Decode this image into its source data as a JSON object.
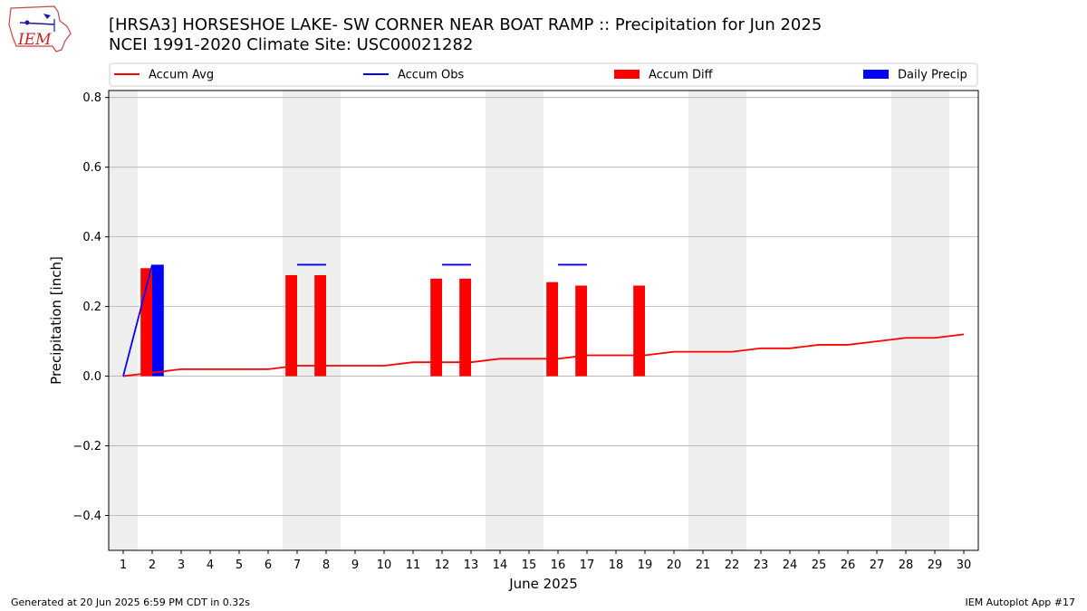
{
  "page": {
    "title_line1": "[HRSA3] HORSESHOE LAKE- SW CORNER NEAR BOAT RAMP :: Precipitation for Jun 2025",
    "title_line2": "NCEI 1991-2020 Climate Site: USC00021282",
    "footer_left": "Generated at 20 Jun 2025 6:59 PM CDT in 0.32s",
    "footer_right": "IEM Autoplot App #17",
    "logo_text": "IEM"
  },
  "colors": {
    "avg": "#ff0000",
    "obs": "#0000ff",
    "diff": "#ff0000",
    "daily": "#0000ff",
    "weekend": "#eeeeee",
    "grid": "#b0b0b0"
  },
  "chart_data": {
    "type": "bar",
    "xlabel": "June 2025",
    "ylabel": "Precipitation [inch]",
    "xlim": [
      0.5,
      30.5
    ],
    "ylim": [
      -0.5,
      0.82
    ],
    "yticks": [
      -0.4,
      -0.2,
      0.0,
      0.2,
      0.4,
      0.6,
      0.8
    ],
    "ytick_labels": [
      "−0.4",
      "−0.2",
      "0.0",
      "0.2",
      "0.4",
      "0.6",
      "0.8"
    ],
    "days": [
      1,
      2,
      3,
      4,
      5,
      6,
      7,
      8,
      9,
      10,
      11,
      12,
      13,
      14,
      15,
      16,
      17,
      18,
      19,
      20,
      21,
      22,
      23,
      24,
      25,
      26,
      27,
      28,
      29,
      30
    ],
    "weekend_days": [
      1,
      7,
      8,
      14,
      15,
      21,
      22,
      28,
      29
    ],
    "legend": {
      "position": "top",
      "entries": [
        {
          "label": "Accum Avg",
          "kind": "line",
          "color_key": "avg"
        },
        {
          "label": "Accum Obs",
          "kind": "line",
          "color_key": "obs"
        },
        {
          "label": "Accum Diff",
          "kind": "bar",
          "color_key": "diff"
        },
        {
          "label": "Daily Precip",
          "kind": "bar",
          "color_key": "daily"
        }
      ]
    },
    "series": [
      {
        "name": "Accum Avg",
        "type": "line",
        "values": [
          0.0,
          0.01,
          0.02,
          0.02,
          0.02,
          0.02,
          0.03,
          0.03,
          0.03,
          0.03,
          0.04,
          0.04,
          0.04,
          0.05,
          0.05,
          0.05,
          0.06,
          0.06,
          0.06,
          0.07,
          0.07,
          0.07,
          0.08,
          0.08,
          0.09,
          0.09,
          0.1,
          0.11,
          0.11,
          0.12
        ]
      },
      {
        "name": "Accum Obs",
        "type": "line",
        "values": [
          0.0,
          0.32,
          null,
          null,
          null,
          null,
          0.32,
          0.32,
          null,
          null,
          null,
          0.32,
          0.32,
          null,
          null,
          0.32,
          0.32,
          null,
          null,
          null,
          null,
          null,
          null,
          null,
          null,
          null,
          null,
          null,
          null,
          null
        ]
      },
      {
        "name": "Accum Diff",
        "type": "bar",
        "values": [
          null,
          0.31,
          null,
          null,
          null,
          null,
          0.29,
          0.29,
          null,
          null,
          null,
          0.28,
          0.28,
          null,
          null,
          0.27,
          0.26,
          null,
          0.26,
          null,
          null,
          null,
          null,
          null,
          null,
          null,
          null,
          null,
          null,
          null
        ]
      },
      {
        "name": "Daily Precip",
        "type": "bar",
        "values": [
          null,
          0.32,
          null,
          null,
          null,
          null,
          null,
          null,
          null,
          null,
          null,
          null,
          null,
          null,
          null,
          null,
          null,
          null,
          null,
          null,
          null,
          null,
          null,
          null,
          null,
          null,
          null,
          null,
          null,
          null
        ]
      }
    ]
  }
}
